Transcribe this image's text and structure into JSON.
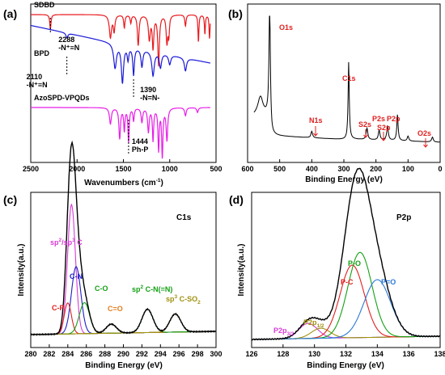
{
  "chart_data": [
    {
      "panel": "(a)",
      "type": "line",
      "xlabel": "Wavenumbers (cm",
      "xlabel_sup": "-1",
      "xlabel_tail": ")",
      "xlim": [
        2500,
        500
      ],
      "xticks": [
        2500,
        2000,
        1500,
        1000,
        500
      ],
      "series": [
        {
          "name": "SDBD",
          "color": "#e8191d"
        },
        {
          "name": "BPD",
          "color": "#1a1ad8"
        },
        {
          "name": "AzoSPD-VPQDs",
          "color": "#e81ee8"
        }
      ],
      "annotations": [
        {
          "line1": "2288",
          "line2": "-N⁺≡N",
          "x": 2288
        },
        {
          "line1": "2110",
          "line2": "-N⁺≡N",
          "x": 2110
        },
        {
          "line1": "1390",
          "line2": "-N=N-",
          "x": 1390
        },
        {
          "line1": "1444",
          "line2": "Ph-P",
          "x": 1444
        }
      ]
    },
    {
      "panel": "(b)",
      "type": "line",
      "xlabel": "Binding Energy (eV)",
      "xlim": [
        600,
        0
      ],
      "xticks": [
        600,
        500,
        400,
        300,
        200,
        100,
        0
      ],
      "series": [
        {
          "color": "#000000"
        }
      ],
      "peaks": [
        {
          "label": "O1s",
          "x": 531
        },
        {
          "label": "C1s",
          "x": 285
        },
        {
          "label": "N1s",
          "x": 400
        },
        {
          "label": "S2s",
          "x": 228
        },
        {
          "label": "P2s",
          "x": 190
        },
        {
          "label": "S2p",
          "x": 164
        },
        {
          "label": "P2p",
          "x": 133
        },
        {
          "label": "O2s",
          "x": 24
        }
      ]
    },
    {
      "panel": "(c)",
      "type": "line",
      "title": "C1s",
      "xlabel": "Binding Energy (eV)",
      "ylabel": "Intensity(a.u.)",
      "xlim": [
        280,
        300
      ],
      "xticks": [
        280,
        282,
        284,
        286,
        288,
        290,
        292,
        294,
        296,
        298,
        300
      ],
      "components": [
        {
          "label": "sp²/sp³ C",
          "center": 284.4,
          "height": 100,
          "fwhm": 1.0,
          "color": "#d63cd6"
        },
        {
          "label": "C-N",
          "center": 284.9,
          "height": 52,
          "fwhm": 1.2,
          "color": "#1f1fc8"
        },
        {
          "label": "C-P",
          "center": 284.0,
          "height": 24,
          "fwhm": 0.9,
          "color": "#e02020"
        },
        {
          "label": "C-O",
          "center": 285.8,
          "height": 24,
          "fwhm": 1.3,
          "color": "#14a014"
        },
        {
          "label": "C=O",
          "center": 288.7,
          "height": 7,
          "fwhm": 1.3,
          "color": "#e08020"
        },
        {
          "label": "sp² C-N(=N)",
          "center": 292.6,
          "height": 18,
          "fwhm": 1.4,
          "color": "#14a014"
        },
        {
          "label": "sp³ C-SO₂",
          "center": 295.6,
          "height": 14,
          "fwhm": 1.4,
          "color": "#a09010"
        }
      ],
      "text": {
        "spsp": "sp²/sp³ C",
        "cn": "C-N",
        "cp": "C-P",
        "co": "C-O",
        "ceo": "C=O",
        "sp2cn": "sp² C-N(=N)",
        "sp3": "sp³ C-SO₂"
      }
    },
    {
      "panel": "(d)",
      "type": "line",
      "title": "P2p",
      "xlabel": "Binding Energy (eV)",
      "ylabel": "Intensity(a.u.)",
      "xlim": [
        126,
        138
      ],
      "xticks": [
        126,
        128,
        130,
        132,
        134,
        136,
        138
      ],
      "components": [
        {
          "label": "P2p3/2",
          "center": 129.6,
          "height": 12,
          "fwhm": 1.4,
          "color": "#d63cd6"
        },
        {
          "label": "P2p1/2",
          "center": 130.4,
          "height": 8,
          "fwhm": 1.4,
          "color": "#a09010"
        },
        {
          "label": "P-C",
          "center": 132.4,
          "height": 58,
          "fwhm": 1.8,
          "color": "#e02020"
        },
        {
          "label": "P-O",
          "center": 132.9,
          "height": 68,
          "fwhm": 1.8,
          "color": "#14a014"
        },
        {
          "label": "P=O",
          "center": 134.0,
          "height": 46,
          "fwhm": 2.0,
          "color": "#2a7ad8"
        }
      ]
    }
  ],
  "colors": {
    "envelope": "#000000",
    "background_line": "#00c0c0"
  }
}
